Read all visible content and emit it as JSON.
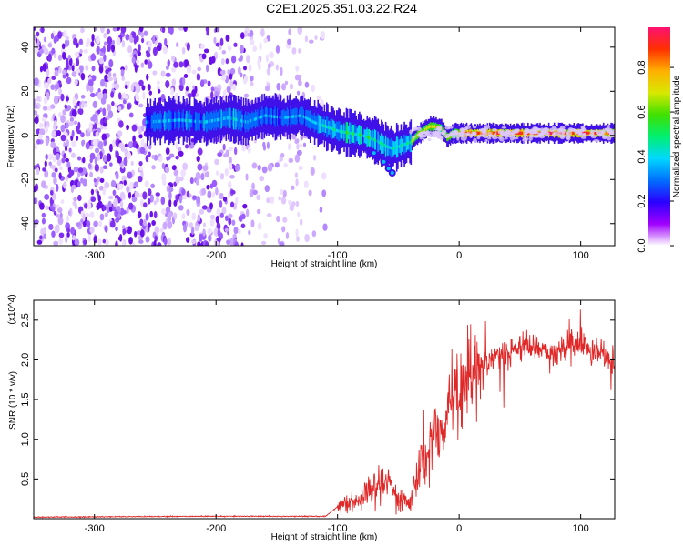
{
  "title": "C2E1.2025.351.03.22.R24",
  "chart_data": [
    {
      "type": "heatmap",
      "name": "spectrogram",
      "xlabel": "Height of straight line (km)",
      "ylabel": "Frequency (Hz)",
      "xlim": [
        -350,
        128
      ],
      "ylim": [
        -50,
        49
      ],
      "xticks": [
        -300,
        -200,
        -100,
        0,
        100
      ],
      "yticks": [
        -40,
        -20,
        0,
        20,
        40
      ],
      "colorbar": {
        "label": "Normalized spectral amplitude",
        "range": [
          0,
          0.98
        ],
        "ticks": [
          "0.0",
          "0.2",
          "0.4",
          "0.6",
          "0.8"
        ],
        "tick_values": [
          0.0,
          0.2,
          0.4,
          0.6,
          0.8
        ],
        "colors": [
          "#ffffff",
          "#a000ff",
          "#2a00ff",
          "#0070ff",
          "#00d8ff",
          "#00f070",
          "#40e000",
          "#d8e800",
          "#ffb000",
          "#ff3000",
          "#ff1070"
        ]
      },
      "ridge": {
        "x": [
          -258,
          -230,
          -210,
          -190,
          -175,
          -160,
          -145,
          -130,
          -120,
          -110,
          -100,
          -90,
          -80,
          -70,
          -60,
          -55,
          -50,
          -45,
          -40,
          -35,
          -30,
          -25,
          -20,
          -15,
          -10,
          -5,
          0,
          20,
          40,
          60,
          80,
          100,
          128
        ],
        "y": [
          6,
          7,
          6,
          8,
          6,
          9,
          8,
          9,
          6,
          4,
          2,
          1,
          0,
          -2,
          -5,
          -6,
          -5,
          -4,
          -3,
          0,
          2,
          4,
          4,
          3,
          -1,
          1,
          1,
          1,
          1,
          1,
          1,
          1,
          1
        ]
      }
    },
    {
      "type": "line",
      "name": "snr",
      "xlabel": "Height of straight line (km)",
      "ylabel": "SNR (10 * v/v)",
      "y_multiplier": "(x10^4)",
      "xlim": [
        -350,
        128
      ],
      "ylim": [
        0,
        2.75
      ],
      "xticks": [
        -300,
        -200,
        -100,
        0,
        100
      ],
      "yticks": [
        0.5,
        1.0,
        1.5,
        2.0,
        2.5
      ],
      "line_color": "#e02828",
      "series": [
        {
          "name": "SNR",
          "x": [
            -350,
            -200,
            -110,
            -100,
            -95,
            -80,
            -70,
            -60,
            -50,
            -40,
            -35,
            -30,
            -25,
            -20,
            -15,
            -10,
            -5,
            0,
            10,
            20,
            30,
            40,
            50,
            60,
            70,
            80,
            90,
            100,
            110,
            120,
            128
          ],
          "y": [
            0.02,
            0.03,
            0.03,
            0.15,
            0.2,
            0.25,
            0.4,
            0.55,
            0.25,
            0.2,
            0.5,
            0.8,
            0.9,
            1.2,
            1.0,
            1.35,
            1.5,
            1.65,
            1.85,
            1.95,
            2.05,
            2.1,
            2.15,
            2.15,
            2.15,
            2.1,
            2.15,
            2.2,
            2.1,
            2.05,
            2.0
          ]
        }
      ]
    }
  ]
}
